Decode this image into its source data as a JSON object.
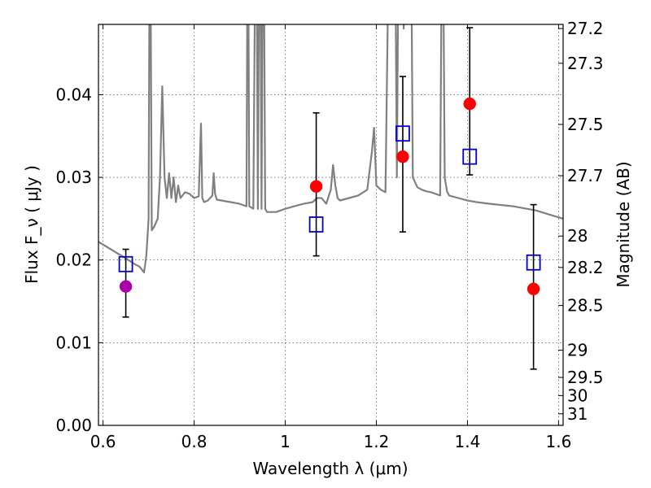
{
  "chart_data": {
    "type": "scatter",
    "title": "",
    "xlabel": "Wavelength  λ (μm)",
    "ylabel": "Flux  F_ν  ( μJy )",
    "y2label": "Magnitude (AB)",
    "xlim": [
      0.59,
      1.61
    ],
    "ylim": [
      0.0,
      0.0485
    ],
    "grid": true,
    "x_ticks": [
      0.6,
      0.8,
      1.0,
      1.2,
      1.4,
      1.6
    ],
    "x_tick_labels": [
      "0.6",
      "0.8",
      "1",
      "1.2",
      "1.4",
      "1.6"
    ],
    "y_ticks": [
      0.0,
      0.01,
      0.02,
      0.03,
      0.04
    ],
    "y_tick_labels": [
      "0.00",
      "0.01",
      "0.02",
      "0.03",
      "0.04"
    ],
    "y2_ticks": [
      {
        "label": "27.2",
        "flux": 0.048
      },
      {
        "label": "27.3",
        "flux": 0.0438
      },
      {
        "label": "27.5",
        "flux": 0.0364
      },
      {
        "label": "27.7",
        "flux": 0.0302
      },
      {
        "label": "28",
        "flux": 0.0229
      },
      {
        "label": "28.2",
        "flux": 0.0191
      },
      {
        "label": "28.5",
        "flux": 0.0145
      },
      {
        "label": "29",
        "flux": 0.0091
      },
      {
        "label": "29.5",
        "flux": 0.0058
      },
      {
        "label": "30",
        "flux": 0.0036
      },
      {
        "label": "31",
        "flux": 0.0014
      }
    ],
    "series": [
      {
        "kind": "line",
        "color": "#808080",
        "x": [
          0.59,
          0.62,
          0.65,
          0.67,
          0.68,
          0.69,
          0.695,
          0.7,
          0.703,
          0.707,
          0.712,
          0.72,
          0.725,
          0.73,
          0.735,
          0.74,
          0.745,
          0.75,
          0.755,
          0.76,
          0.765,
          0.77,
          0.78,
          0.79,
          0.8,
          0.81,
          0.815,
          0.818,
          0.822,
          0.83,
          0.84,
          0.843,
          0.846,
          0.85,
          0.86,
          0.88,
          0.9,
          0.915,
          0.918,
          0.921,
          0.93,
          0.936,
          0.94,
          0.944,
          0.948,
          0.952,
          0.956,
          0.96,
          0.98,
          1.0,
          1.02,
          1.04,
          1.06,
          1.07,
          1.08,
          1.09,
          1.1,
          1.105,
          1.11,
          1.115,
          1.12,
          1.14,
          1.16,
          1.18,
          1.19,
          1.195,
          1.2,
          1.21,
          1.22,
          1.23,
          1.235,
          1.24,
          1.245,
          1.25,
          1.255,
          1.26,
          1.265,
          1.27,
          1.275,
          1.28,
          1.29,
          1.3,
          1.31,
          1.32,
          1.33,
          1.34,
          1.345,
          1.35,
          1.355,
          1.36,
          1.38,
          1.4,
          1.42,
          1.45,
          1.5,
          1.55,
          1.58,
          1.61
        ],
        "y": [
          0.0222,
          0.0212,
          0.0202,
          0.0195,
          0.0192,
          0.0185,
          0.0205,
          0.025,
          0.07,
          0.0236,
          0.024,
          0.025,
          0.03,
          0.041,
          0.03,
          0.0275,
          0.0305,
          0.0275,
          0.03,
          0.027,
          0.029,
          0.0275,
          0.0282,
          0.028,
          0.0275,
          0.0277,
          0.0365,
          0.0275,
          0.027,
          0.0272,
          0.0278,
          0.0305,
          0.028,
          0.0273,
          0.0272,
          0.027,
          0.0268,
          0.0265,
          0.07,
          0.0265,
          0.0262,
          0.07,
          0.0262,
          0.07,
          0.0262,
          0.07,
          0.0262,
          0.0258,
          0.0258,
          0.0262,
          0.0265,
          0.0268,
          0.027,
          0.0275,
          0.0275,
          0.0268,
          0.0285,
          0.0315,
          0.029,
          0.0275,
          0.0272,
          0.0275,
          0.0278,
          0.0285,
          0.033,
          0.036,
          0.029,
          0.0285,
          0.0282,
          0.07,
          0.07,
          0.07,
          0.03,
          0.07,
          0.07,
          0.048,
          0.07,
          0.07,
          0.07,
          0.03,
          0.0288,
          0.0285,
          0.0283,
          0.0282,
          0.028,
          0.0278,
          0.07,
          0.03,
          0.0283,
          0.0278,
          0.0275,
          0.0272,
          0.027,
          0.0268,
          0.0265,
          0.026,
          0.0255,
          0.025
        ]
      },
      {
        "kind": "errorbar",
        "color": "#000000",
        "points": [
          {
            "x": 0.65,
            "ylow": 0.0131,
            "yhigh": 0.0213
          },
          {
            "x": 1.068,
            "ylow": 0.0205,
            "yhigh": 0.0378
          },
          {
            "x": 1.258,
            "ylow": 0.0234,
            "yhigh": 0.0422
          },
          {
            "x": 1.405,
            "ylow": 0.0303,
            "yhigh": 0.0481
          },
          {
            "x": 1.545,
            "ylow": 0.0068,
            "yhigh": 0.0267
          }
        ]
      },
      {
        "kind": "square",
        "color": "#0000cc",
        "x": [
          0.65,
          1.068,
          1.258,
          1.405,
          1.545
        ],
        "y": [
          0.0195,
          0.0243,
          0.0353,
          0.0325,
          0.0197
        ]
      },
      {
        "kind": "circle",
        "color": "#aa00aa",
        "x": [
          0.65
        ],
        "y": [
          0.0168
        ]
      },
      {
        "kind": "circle",
        "color": "#ff0000",
        "x": [
          1.068,
          1.258,
          1.405,
          1.545
        ],
        "y": [
          0.0289,
          0.0325,
          0.0389,
          0.0165
        ]
      }
    ]
  }
}
